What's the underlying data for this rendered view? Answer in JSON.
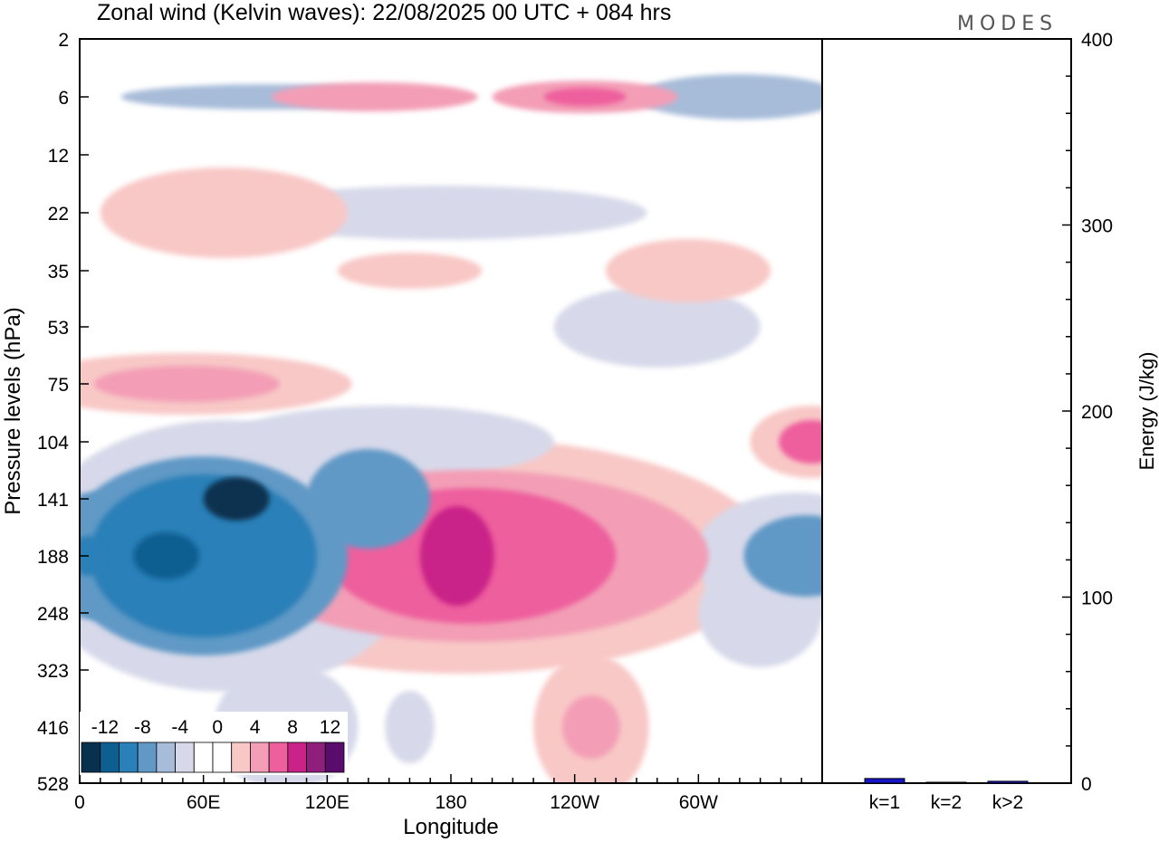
{
  "brand": "MODES",
  "colors": {
    "neg": [
      "#08314f",
      "#0d5f92",
      "#2a80b8",
      "#6199c6",
      "#a7bcd9",
      "#d7d9ea",
      "#ffffff"
    ],
    "pos": [
      "#ffffff",
      "#f8c8c6",
      "#f39eb6",
      "#ee5f9d",
      "#c92288",
      "#901e7d",
      "#5a0c6c"
    ],
    "bar": "#1616c8",
    "axis": "#000000"
  },
  "chart_data": [
    {
      "type": "heatmap",
      "title": "Zonal wind (Kelvin waves):  22/08/2025  00 UTC  + 084 hrs",
      "xlabel": "Longitude",
      "ylabel": "Pressure levels (hPa)",
      "x_ticks": [
        "0",
        "60E",
        "120E",
        "180",
        "120W",
        "60W"
      ],
      "x_tick_degrees": [
        0,
        60,
        120,
        180,
        240,
        300
      ],
      "xlim": [
        0,
        360
      ],
      "y_ticks": [
        "2",
        "6",
        "12",
        "22",
        "35",
        "53",
        "75",
        "104",
        "141",
        "188",
        "248",
        "323",
        "416",
        "528"
      ],
      "colorbar": {
        "labels": [
          "-12",
          "-8",
          "-4",
          "0",
          "4",
          "8",
          "12"
        ],
        "levels": [
          -14,
          -12,
          -10,
          -8,
          -6,
          -4,
          -2,
          0,
          2,
          4,
          6,
          8,
          10,
          12,
          14
        ]
      },
      "features": [
        {
          "lon": 183,
          "level": 188,
          "value": 11,
          "note": "positive maximum"
        },
        {
          "lon": 76,
          "level": 141,
          "value": -14,
          "note": "negative minimum"
        },
        {
          "lon": 42,
          "level": 188,
          "value": -12
        },
        {
          "lon": 4,
          "level": 188,
          "value": -10
        },
        {
          "lon": 355,
          "level": 104,
          "value": 7
        },
        {
          "lon": 248,
          "level": 416,
          "value": 5
        },
        {
          "lon": 245,
          "level": 6,
          "value": 7
        },
        {
          "lon": 143,
          "level": 6,
          "value": 6
        },
        {
          "lon": 52,
          "level": 75,
          "value": 5
        }
      ]
    },
    {
      "type": "bar",
      "ylabel": "Energy (J/kg)",
      "ylim": [
        0,
        400
      ],
      "y_ticks": [
        "0",
        "100",
        "200",
        "300",
        "400"
      ],
      "categories": [
        "k=1",
        "k=2",
        "k>2"
      ],
      "values": [
        2.5,
        0.3,
        1.0
      ]
    }
  ]
}
